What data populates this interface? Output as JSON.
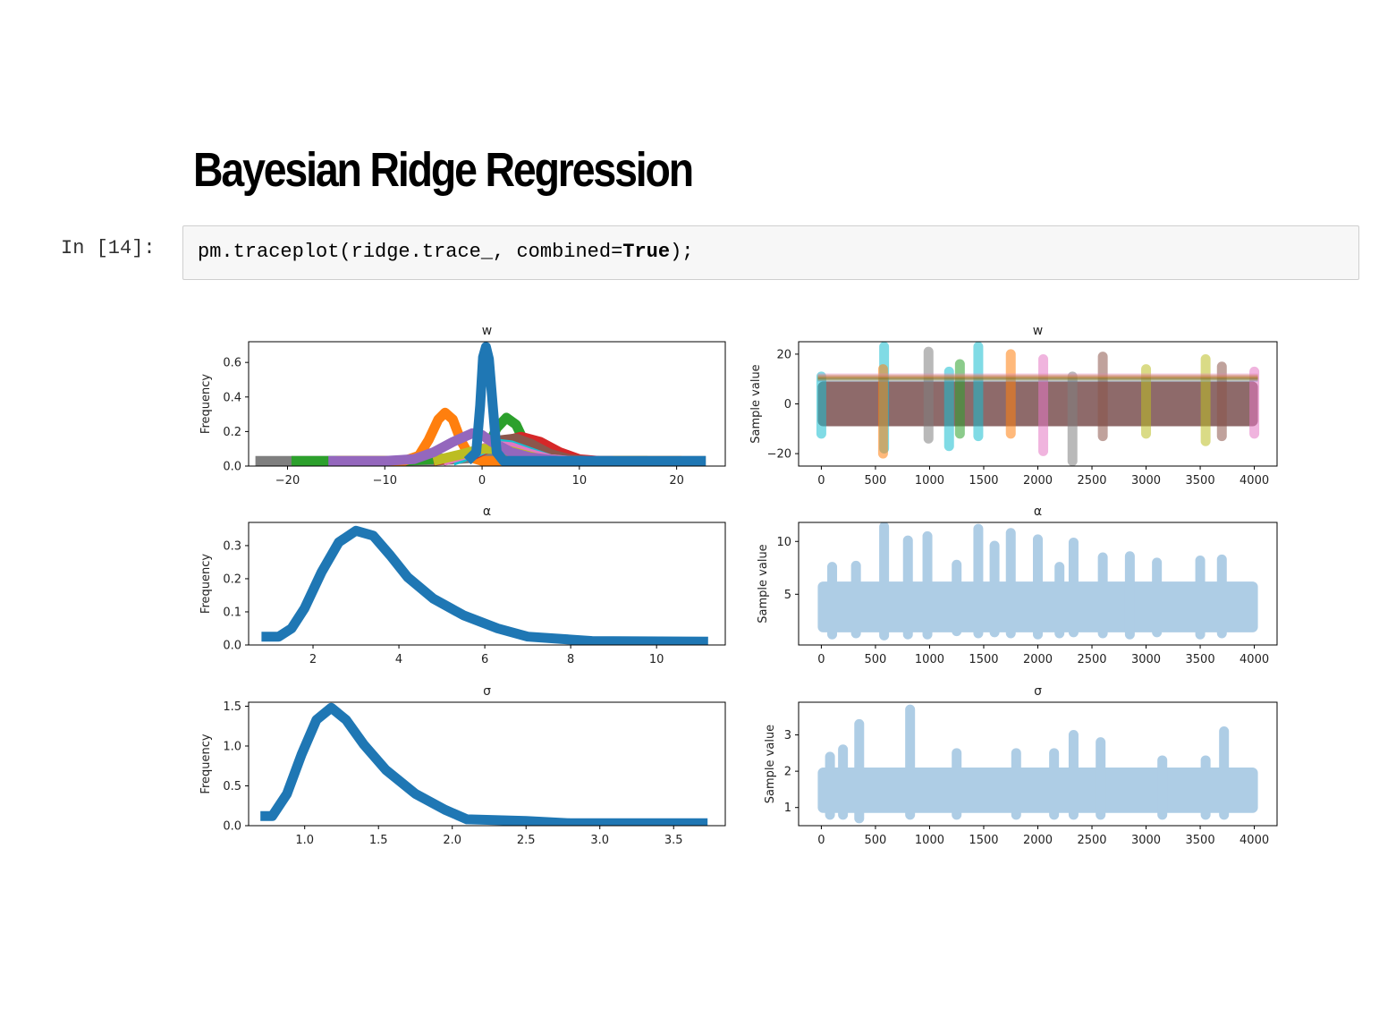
{
  "notebook": {
    "heading": "Bayesian Ridge Regression",
    "prompt": "In [14]:",
    "code": {
      "prefix": "pm.traceplot(ridge.trace_, combined=",
      "keyword": "True",
      "suffix": ");"
    }
  },
  "colors": {
    "tab_blue": "#1f77b4",
    "tab_orange": "#ff7f0e",
    "tab_green": "#2ca02c",
    "tab_red": "#d62728",
    "tab_purple": "#9467bd",
    "tab_brown": "#8c564b",
    "tab_pink": "#e377c2",
    "tab_gray": "#7f7f7f",
    "tab_olive": "#bcbd22",
    "tab_cyan": "#17becf",
    "trace_fill": "#aecde5",
    "trace_mix": "#8e6a6a"
  },
  "chart_data": [
    {
      "type": "line",
      "title": "w",
      "ylabel": "Frequency",
      "xlim": [
        -24,
        25
      ],
      "ylim": [
        0,
        0.72
      ],
      "xticks": [
        -20,
        -10,
        0,
        10,
        20
      ],
      "yticks": [
        0.0,
        0.2,
        0.4,
        0.6
      ],
      "series": [
        {
          "color": "#7f7f7f",
          "values": [
            [
              -23.3,
              0.03
            ],
            [
              -20,
              0.03
            ],
            [
              -15,
              0.03
            ],
            [
              -10,
              0.03
            ],
            [
              -5,
              0.03
            ],
            [
              0,
              0.05
            ],
            [
              5,
              0.03
            ],
            [
              10,
              0.03
            ],
            [
              15,
              0.03
            ],
            [
              20,
              0.03
            ],
            [
              23,
              0.03
            ]
          ]
        },
        {
          "color": "#2ca02c",
          "values": [
            [
              -19.6,
              0.03
            ],
            [
              -15,
              0.03
            ],
            [
              -8,
              0.03
            ],
            [
              -2,
              0.05
            ],
            [
              0.5,
              0.1
            ],
            [
              1.5,
              0.22
            ],
            [
              2.5,
              0.28
            ],
            [
              3.5,
              0.24
            ],
            [
              4.5,
              0.12
            ],
            [
              6,
              0.05
            ],
            [
              10,
              0.03
            ],
            [
              17,
              0.03
            ]
          ]
        },
        {
          "color": "#ff7f0e",
          "values": [
            [
              -15,
              0.03
            ],
            [
              -8,
              0.03
            ],
            [
              -6.5,
              0.06
            ],
            [
              -5.5,
              0.15
            ],
            [
              -4.5,
              0.27
            ],
            [
              -3.8,
              0.31
            ],
            [
              -3,
              0.27
            ],
            [
              -2.2,
              0.15
            ],
            [
              -1.2,
              0.05
            ],
            [
              0,
              0.03
            ],
            [
              10,
              0.03
            ],
            [
              20.5,
              0.03
            ]
          ]
        },
        {
          "color": "#d62728",
          "values": [
            [
              -5,
              0.03
            ],
            [
              -1,
              0.06
            ],
            [
              2,
              0.14
            ],
            [
              4,
              0.17
            ],
            [
              6,
              0.14
            ],
            [
              8,
              0.08
            ],
            [
              10,
              0.04
            ],
            [
              12,
              0.03
            ]
          ]
        },
        {
          "color": "#8c564b",
          "values": [
            [
              -4,
              0.03
            ],
            [
              -1,
              0.07
            ],
            [
              2,
              0.15
            ],
            [
              3.5,
              0.16
            ],
            [
              5,
              0.13
            ],
            [
              7,
              0.07
            ],
            [
              9,
              0.04
            ],
            [
              11,
              0.03
            ]
          ]
        },
        {
          "color": "#17becf",
          "values": [
            [
              -3,
              0.03
            ],
            [
              -0.5,
              0.08
            ],
            [
              1.5,
              0.13
            ],
            [
              3,
              0.12
            ],
            [
              5,
              0.08
            ],
            [
              7,
              0.04
            ],
            [
              9,
              0.03
            ]
          ]
        },
        {
          "color": "#e377c2",
          "values": [
            [
              -4,
              0.03
            ],
            [
              -1,
              0.08
            ],
            [
              1,
              0.12
            ],
            [
              3,
              0.11
            ],
            [
              5,
              0.07
            ],
            [
              7,
              0.04
            ],
            [
              9,
              0.03
            ]
          ]
        },
        {
          "color": "#bcbd22",
          "values": [
            [
              -5,
              0.03
            ],
            [
              -2,
              0.07
            ],
            [
              0,
              0.1
            ],
            [
              2,
              0.1
            ],
            [
              4,
              0.07
            ],
            [
              6,
              0.04
            ],
            [
              8,
              0.03
            ]
          ]
        },
        {
          "color": "#9467bd",
          "values": [
            [
              -15.8,
              0.03
            ],
            [
              -10,
              0.03
            ],
            [
              -7,
              0.04
            ],
            [
              -5,
              0.08
            ],
            [
              -3,
              0.14
            ],
            [
              -1,
              0.19
            ],
            [
              0,
              0.18
            ],
            [
              1,
              0.14
            ],
            [
              3,
              0.08
            ],
            [
              5,
              0.05
            ],
            [
              8,
              0.03
            ],
            [
              13.5,
              0.03
            ]
          ]
        },
        {
          "color": "#1f77b4",
          "values": [
            [
              -1.5,
              0.03
            ],
            [
              -0.6,
              0.08
            ],
            [
              -0.2,
              0.35
            ],
            [
              0.1,
              0.63
            ],
            [
              0.4,
              0.69
            ],
            [
              0.7,
              0.62
            ],
            [
              1.1,
              0.35
            ],
            [
              1.5,
              0.08
            ],
            [
              2.2,
              0.03
            ],
            [
              10,
              0.03
            ],
            [
              23,
              0.03
            ]
          ]
        }
      ]
    },
    {
      "type": "line",
      "title": "w",
      "ylabel": "Sample value",
      "xlim": [
        -210,
        4210
      ],
      "ylim": [
        -25,
        25
      ],
      "xticks": [
        0,
        500,
        1000,
        1500,
        2000,
        2500,
        3000,
        3500,
        4000
      ],
      "yticks": [
        -20,
        0,
        20
      ],
      "band": {
        "low": -9,
        "high": 9
      },
      "spikes": [
        {
          "x": 0,
          "low": -12,
          "high": 11,
          "color": "#17becf"
        },
        {
          "x": 580,
          "low": -18,
          "high": 23,
          "color": "#17becf"
        },
        {
          "x": 570,
          "low": -20,
          "high": 14,
          "color": "#ff7f0e"
        },
        {
          "x": 990,
          "low": -14,
          "high": 21,
          "color": "#7f7f7f"
        },
        {
          "x": 1450,
          "low": -13,
          "high": 23,
          "color": "#17becf"
        },
        {
          "x": 1750,
          "low": -12,
          "high": 20,
          "color": "#ff7f0e"
        },
        {
          "x": 1280,
          "low": -12,
          "high": 16,
          "color": "#2ca02c"
        },
        {
          "x": 2050,
          "low": -19,
          "high": 18,
          "color": "#e377c2"
        },
        {
          "x": 2320,
          "low": -23,
          "high": 11,
          "color": "#7f7f7f"
        },
        {
          "x": 2600,
          "low": -13,
          "high": 19,
          "color": "#8c564b"
        },
        {
          "x": 1180,
          "low": -17,
          "high": 13,
          "color": "#17becf"
        },
        {
          "x": 3000,
          "low": -12,
          "high": 14,
          "color": "#bcbd22"
        },
        {
          "x": 3550,
          "low": -15,
          "high": 18,
          "color": "#bcbd22"
        },
        {
          "x": 3700,
          "low": -13,
          "high": 15,
          "color": "#8c564b"
        },
        {
          "x": 4000,
          "low": -12,
          "high": 13,
          "color": "#e377c2"
        }
      ]
    },
    {
      "type": "line",
      "title": "α",
      "ylabel": "Frequency",
      "xlim": [
        0.5,
        11.6
      ],
      "ylim": [
        0,
        0.37
      ],
      "xticks": [
        2,
        4,
        6,
        8,
        10
      ],
      "yticks": [
        0.0,
        0.1,
        0.2,
        0.3
      ],
      "series": [
        {
          "color": "#1f77b4",
          "values": [
            [
              0.8,
              0.025
            ],
            [
              1.2,
              0.025
            ],
            [
              1.5,
              0.05
            ],
            [
              1.8,
              0.11
            ],
            [
              2.2,
              0.22
            ],
            [
              2.6,
              0.31
            ],
            [
              3.0,
              0.345
            ],
            [
              3.4,
              0.33
            ],
            [
              3.8,
              0.27
            ],
            [
              4.2,
              0.205
            ],
            [
              4.8,
              0.14
            ],
            [
              5.5,
              0.09
            ],
            [
              6.3,
              0.05
            ],
            [
              7.0,
              0.025
            ],
            [
              8.5,
              0.012
            ],
            [
              11.2,
              0.01
            ]
          ]
        }
      ]
    },
    {
      "type": "line",
      "title": "α",
      "ylabel": "Sample value",
      "xlim": [
        -210,
        4210
      ],
      "ylim": [
        0.2,
        11.8
      ],
      "xticks": [
        0,
        500,
        1000,
        1500,
        2000,
        2500,
        3000,
        3500,
        4000
      ],
      "yticks": [
        5,
        10
      ],
      "band": {
        "low": 1.4,
        "high": 6.2
      },
      "spikes": [
        {
          "x": 100,
          "low": 1.2,
          "high": 7.6
        },
        {
          "x": 320,
          "low": 1.3,
          "high": 7.7
        },
        {
          "x": 580,
          "low": 1.1,
          "high": 11.4
        },
        {
          "x": 800,
          "low": 1.2,
          "high": 10.1
        },
        {
          "x": 980,
          "low": 1.2,
          "high": 10.5
        },
        {
          "x": 1250,
          "low": 1.5,
          "high": 7.8
        },
        {
          "x": 1450,
          "low": 1.3,
          "high": 11.2
        },
        {
          "x": 1600,
          "low": 1.4,
          "high": 9.6
        },
        {
          "x": 1750,
          "low": 1.3,
          "high": 10.8
        },
        {
          "x": 2000,
          "low": 1.2,
          "high": 10.2
        },
        {
          "x": 2200,
          "low": 1.3,
          "high": 7.6
        },
        {
          "x": 2330,
          "low": 1.4,
          "high": 9.9
        },
        {
          "x": 2600,
          "low": 1.3,
          "high": 8.5
        },
        {
          "x": 2850,
          "low": 1.2,
          "high": 8.6
        },
        {
          "x": 3100,
          "low": 1.4,
          "high": 8.0
        },
        {
          "x": 3500,
          "low": 1.2,
          "high": 8.2
        },
        {
          "x": 3700,
          "low": 1.3,
          "high": 8.3
        }
      ]
    },
    {
      "type": "line",
      "title": "σ",
      "ylabel": "Frequency",
      "xlim": [
        0.62,
        3.85
      ],
      "ylim": [
        0,
        1.55
      ],
      "xticks": [
        1.0,
        1.5,
        2.0,
        2.5,
        3.0,
        3.5
      ],
      "yticks": [
        0.0,
        0.5,
        1.0,
        1.5
      ],
      "series": [
        {
          "color": "#1f77b4",
          "values": [
            [
              0.7,
              0.12
            ],
            [
              0.78,
              0.12
            ],
            [
              0.88,
              0.4
            ],
            [
              0.98,
              0.9
            ],
            [
              1.08,
              1.33
            ],
            [
              1.18,
              1.48
            ],
            [
              1.28,
              1.33
            ],
            [
              1.4,
              1.02
            ],
            [
              1.55,
              0.7
            ],
            [
              1.75,
              0.4
            ],
            [
              1.95,
              0.2
            ],
            [
              2.1,
              0.08
            ],
            [
              2.5,
              0.06
            ],
            [
              2.8,
              0.03
            ],
            [
              3.73,
              0.03
            ]
          ]
        }
      ]
    },
    {
      "type": "line",
      "title": "σ",
      "ylabel": "Sample value",
      "xlim": [
        -210,
        4210
      ],
      "ylim": [
        0.5,
        3.9
      ],
      "xticks": [
        0,
        500,
        1000,
        1500,
        2000,
        2500,
        3000,
        3500,
        4000
      ],
      "yticks": [
        1,
        2,
        3
      ],
      "band": {
        "low": 0.85,
        "high": 2.1
      },
      "spikes": [
        {
          "x": 80,
          "low": 0.8,
          "high": 2.4
        },
        {
          "x": 200,
          "low": 0.8,
          "high": 2.6
        },
        {
          "x": 350,
          "low": 0.7,
          "high": 3.3
        },
        {
          "x": 820,
          "low": 0.8,
          "high": 3.7
        },
        {
          "x": 1250,
          "low": 0.8,
          "high": 2.5
        },
        {
          "x": 1800,
          "low": 0.8,
          "high": 2.5
        },
        {
          "x": 2150,
          "low": 0.8,
          "high": 2.5
        },
        {
          "x": 2330,
          "low": 0.8,
          "high": 3.0
        },
        {
          "x": 2580,
          "low": 0.8,
          "high": 2.8
        },
        {
          "x": 3150,
          "low": 0.8,
          "high": 2.3
        },
        {
          "x": 3550,
          "low": 0.8,
          "high": 2.3
        },
        {
          "x": 3720,
          "low": 0.8,
          "high": 3.1
        }
      ]
    }
  ]
}
